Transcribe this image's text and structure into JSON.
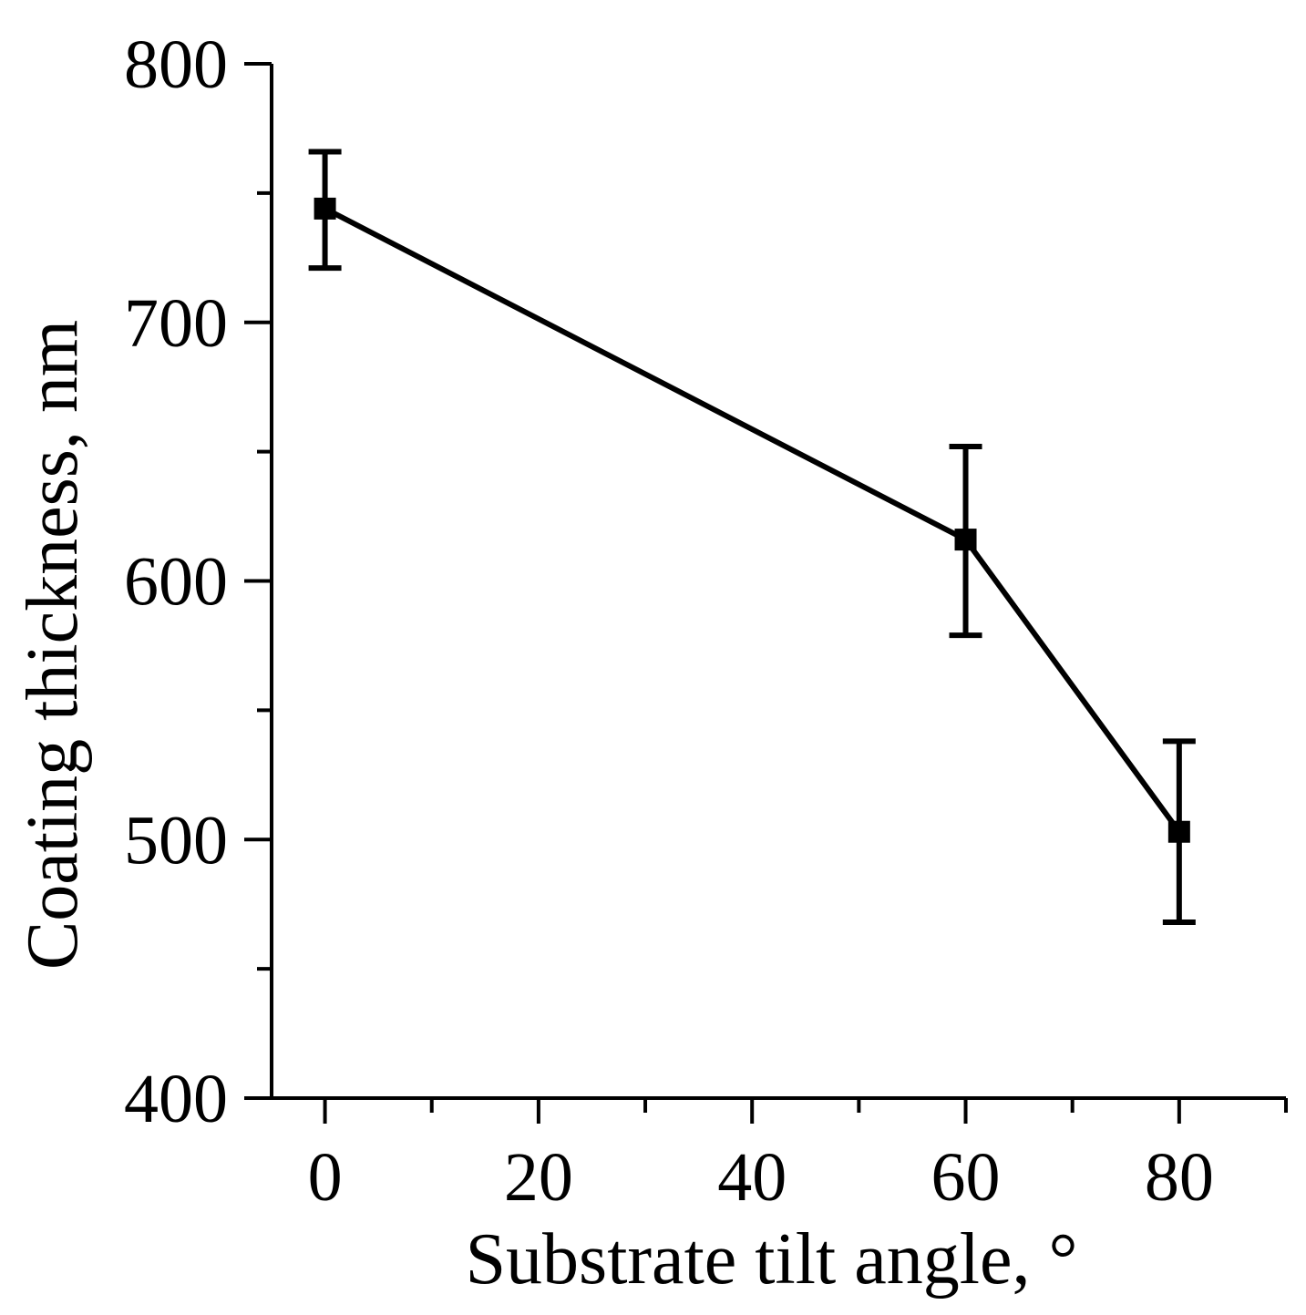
{
  "chart_data": {
    "type": "line",
    "title": "",
    "xlabel": "Substrate tilt angle, °",
    "ylabel": "Coating thickness, nm",
    "xlim": [
      -5,
      90
    ],
    "ylim": [
      400,
      800
    ],
    "xticks": [
      0,
      20,
      40,
      60,
      80
    ],
    "xtick_labels": [
      "0",
      "20",
      "40",
      "60",
      "80"
    ],
    "x_minor_ticks": [
      10,
      30,
      50,
      70,
      90
    ],
    "yticks": [
      400,
      500,
      600,
      700,
      800
    ],
    "ytick_labels": [
      "400",
      "500",
      "600",
      "700",
      "800"
    ],
    "y_minor_ticks": [
      450,
      550,
      650,
      750
    ],
    "grid": false,
    "legend": "none",
    "series": [
      {
        "name": "Coating thickness",
        "marker": "square",
        "color": "#000000",
        "x": [
          0,
          60,
          80
        ],
        "y": [
          744,
          616,
          503
        ],
        "error_low": [
          721,
          579,
          468
        ],
        "error_high": [
          766,
          652,
          538
        ]
      }
    ]
  }
}
